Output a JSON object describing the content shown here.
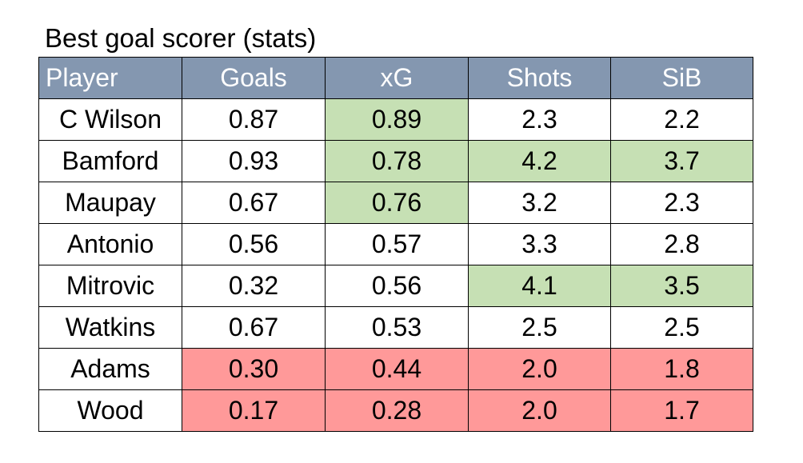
{
  "title": "Best goal scorer (stats)",
  "colors": {
    "header_bg": "#8497b0",
    "header_text": "#ffffff",
    "highlight_good": "#c6e0b4",
    "highlight_bad": "#ff9999",
    "border": "#000000"
  },
  "chart_data": {
    "type": "table",
    "title": "Best goal scorer (stats)",
    "columns": [
      "Player",
      "Goals",
      "xG",
      "Shots",
      "SiB"
    ],
    "rows": [
      {
        "cells": [
          "C Wilson",
          "0.87",
          "0.89",
          "2.3",
          "2.2"
        ],
        "highlights": [
          "",
          "",
          "good",
          "",
          ""
        ]
      },
      {
        "cells": [
          "Bamford",
          "0.93",
          "0.78",
          "4.2",
          "3.7"
        ],
        "highlights": [
          "",
          "",
          "good",
          "good",
          "good"
        ]
      },
      {
        "cells": [
          "Maupay",
          "0.67",
          "0.76",
          "3.2",
          "2.3"
        ],
        "highlights": [
          "",
          "",
          "good",
          "",
          ""
        ]
      },
      {
        "cells": [
          "Antonio",
          "0.56",
          "0.57",
          "3.3",
          "2.8"
        ],
        "highlights": [
          "",
          "",
          "",
          "",
          ""
        ]
      },
      {
        "cells": [
          "Mitrovic",
          "0.32",
          "0.56",
          "4.1",
          "3.5"
        ],
        "highlights": [
          "",
          "",
          "",
          "good",
          "good"
        ]
      },
      {
        "cells": [
          "Watkins",
          "0.67",
          "0.53",
          "2.5",
          "2.5"
        ],
        "highlights": [
          "",
          "",
          "",
          "",
          ""
        ]
      },
      {
        "cells": [
          "Adams",
          "0.30",
          "0.44",
          "2.0",
          "1.8"
        ],
        "highlights": [
          "",
          "bad",
          "bad",
          "bad",
          "bad"
        ]
      },
      {
        "cells": [
          "Wood",
          "0.17",
          "0.28",
          "2.0",
          "1.7"
        ],
        "highlights": [
          "",
          "bad",
          "bad",
          "bad",
          "bad"
        ]
      }
    ]
  }
}
